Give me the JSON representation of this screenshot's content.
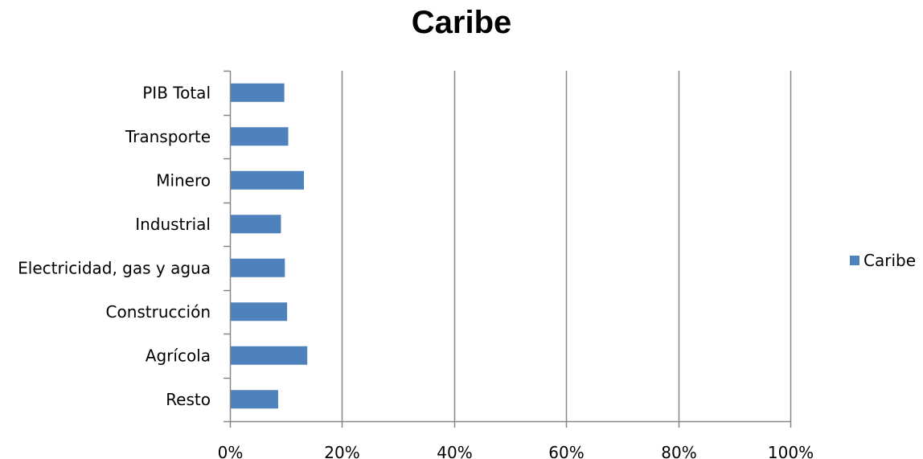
{
  "chart_data": {
    "type": "bar",
    "orientation": "horizontal",
    "title": "Caribe",
    "xlabel": "",
    "ylabel": "",
    "categories": [
      "PIB Total",
      "Transporte",
      "Minero",
      "Industrial",
      "Electricidad, gas y agua",
      "Construcción",
      "Agrícola",
      "Resto"
    ],
    "series": [
      {
        "name": "Caribe",
        "values": [
          0.097,
          0.104,
          0.132,
          0.091,
          0.098,
          0.102,
          0.138,
          0.086
        ],
        "color": "#4f81bd"
      }
    ],
    "xlim": [
      0,
      1
    ],
    "x_ticks": [
      0,
      0.2,
      0.4,
      0.6,
      0.8,
      1.0
    ],
    "x_tick_labels": [
      "0%",
      "20%",
      "40%",
      "60%",
      "80%",
      "100%"
    ],
    "grid": "vertical",
    "legend": "right"
  }
}
